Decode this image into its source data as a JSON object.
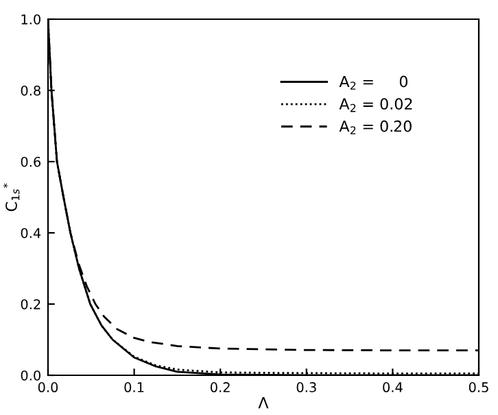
{
  "chart_data": {
    "type": "line",
    "xlabel": "Λ",
    "ylabel": "C$_{1s}$$^{*}$",
    "xlim": [
      0.0,
      0.5
    ],
    "ylim": [
      0.0,
      1.0
    ],
    "xticks": [
      {
        "value": 0.0,
        "label": "0.0"
      },
      0.1,
      0.2,
      0.3,
      0.4,
      0.5
    ],
    "yticks": [
      {
        "value": 0.0,
        "label": "0.0"
      },
      0.2,
      0.4,
      0.6,
      0.8,
      {
        "value": 1.0,
        "label": "1.0"
      }
    ],
    "grid": false,
    "legend": "top right",
    "marker": "none",
    "series": [
      {
        "name": "A$_{2}$ =     0",
        "color": "#000000",
        "line_style": "solid",
        "x": [
          0,
          0.004,
          0.0104,
          0.018,
          0.026,
          0.036,
          0.049,
          0.062,
          0.075,
          0.1,
          0.125,
          0.15,
          0.2,
          0.3,
          0.4,
          0.5
        ],
        "values": [
          1.0,
          0.8,
          0.6,
          0.5,
          0.4,
          0.3,
          0.2,
          0.14,
          0.1,
          0.05,
          0.025,
          0.01,
          0.002,
          0.0,
          0.0,
          0.0
        ]
      },
      {
        "name": "A$_{2}$ = 0.02",
        "color": "#000000",
        "line_style": "dotted",
        "x": [
          0,
          0.004,
          0.0104,
          0.018,
          0.026,
          0.036,
          0.049,
          0.062,
          0.075,
          0.1,
          0.125,
          0.15,
          0.2,
          0.3,
          0.4,
          0.5
        ],
        "values": [
          1.0,
          0.8,
          0.6,
          0.5,
          0.4,
          0.3,
          0.2,
          0.14,
          0.1,
          0.052,
          0.028,
          0.016,
          0.008,
          0.006,
          0.005,
          0.005
        ]
      },
      {
        "name": "A$_{2}$ = 0.20",
        "color": "#000000",
        "line_style": "dashed",
        "x": [
          0,
          0.004,
          0.0104,
          0.018,
          0.026,
          0.036,
          0.045,
          0.055,
          0.065,
          0.08,
          0.1,
          0.117,
          0.15,
          0.2,
          0.3,
          0.4,
          0.5
        ],
        "values": [
          1.0,
          0.8,
          0.6,
          0.5,
          0.4,
          0.31,
          0.25,
          0.2,
          0.165,
          0.13,
          0.105,
          0.094,
          0.082,
          0.075,
          0.071,
          0.07,
          0.07
        ]
      }
    ]
  }
}
